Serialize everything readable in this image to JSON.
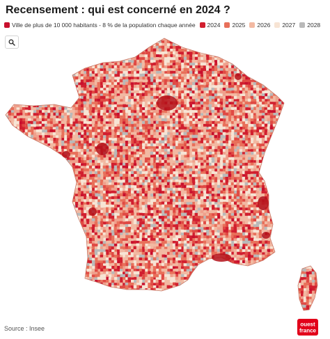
{
  "header": {
    "title": "Recensement : qui est concerné en 2024 ?"
  },
  "legend": {
    "items": [
      {
        "label": "Ville de plus de 10 000 habitants - 8 % de la population chaque année",
        "color": "#c8102e"
      },
      {
        "label": "2024",
        "color": "#d11f2f"
      },
      {
        "label": "2025",
        "color": "#e8705a"
      },
      {
        "label": "2026",
        "color": "#f2b9a2"
      },
      {
        "label": "2027",
        "color": "#f7e4d4"
      },
      {
        "label": "2028",
        "color": "#b9b9b9"
      }
    ]
  },
  "toolbar": {
    "search_icon": "search-icon"
  },
  "footer": {
    "source": "Source : Insee",
    "logo_top": "ouest",
    "logo_bottom": "france"
  }
}
